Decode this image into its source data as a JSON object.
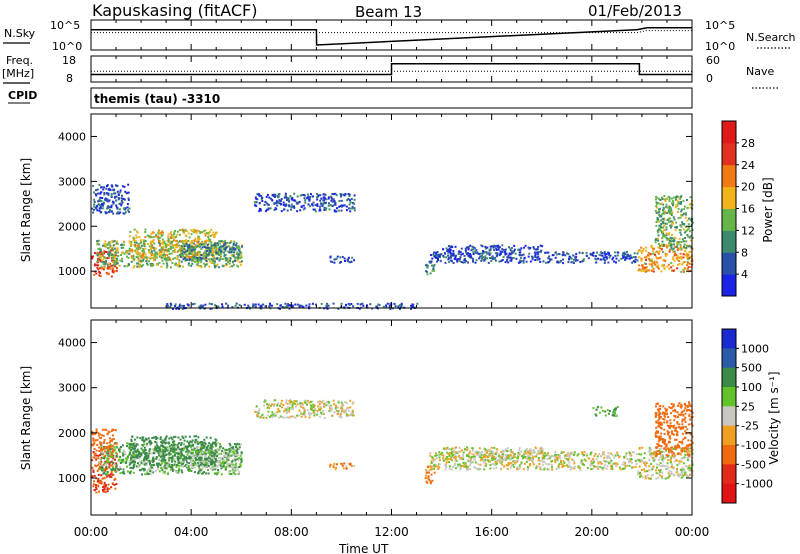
{
  "header": {
    "station": "Kapuskasing (fitACF)",
    "beam": "Beam 13",
    "date": "01/Feb/2013"
  },
  "noise_panel": {
    "left_label": "N.Sky",
    "left_ticks": [
      "10^5",
      "10^0"
    ],
    "right_label": "N.Search",
    "right_ticks": [
      "10^5",
      "10^0"
    ]
  },
  "freq_panel": {
    "left_label_1": "Freq.",
    "left_label_2": "[MHz]",
    "left_ticks": [
      "18",
      "8"
    ],
    "right_label": "Nave",
    "right_ticks": [
      "60",
      "0"
    ]
  },
  "cpid": {
    "label": "CPID",
    "program": "themis (tau) -3310"
  },
  "time_axis": {
    "label": "Time UT",
    "ticks": [
      "00:00",
      "04:00",
      "08:00",
      "12:00",
      "16:00",
      "20:00",
      "00:00"
    ]
  },
  "power_panel": {
    "ylabel": "Slant Range [km]",
    "yticks": [
      "1000",
      "2000",
      "3000",
      "4000"
    ],
    "colorbar_title": "Power [dB]",
    "colorbar_ticks": [
      "4",
      "8",
      "12",
      "16",
      "20",
      "24",
      "28"
    ]
  },
  "velocity_panel": {
    "ylabel": "Slant Range [km]",
    "yticks": [
      "1000",
      "2000",
      "3000",
      "4000"
    ],
    "colorbar_title": "Velocity [m s⁻¹]",
    "colorbar_ticks": [
      "1000",
      "500",
      "100",
      "25",
      "-25",
      "-100",
      "-500",
      "-1000"
    ]
  },
  "colors": {
    "power_scale": [
      "#1a23e6",
      "#2a50a8",
      "#3c8a6e",
      "#66b54a",
      "#f0b41a",
      "#f07a14",
      "#e0321e",
      "#e01a1a"
    ],
    "velocity_scale": [
      "#1a2ad0",
      "#2a5aa8",
      "#3a8a48",
      "#62c22a",
      "#c8c8c0",
      "#f0a020",
      "#f06a10",
      "#e02a1a",
      "#e01414"
    ],
    "ground_scatter": "#c8c8c0"
  },
  "chart_data": [
    {
      "type": "line",
      "name": "noise",
      "x_hours": [
        0,
        9.0,
        9.01,
        21.8,
        22.2,
        24
      ],
      "sky_log10": [
        3.4,
        3.4,
        0.2,
        3.4,
        3.8,
        3.8
      ],
      "search_log10": [
        2.8,
        2.8,
        2.8,
        2.8,
        3.2,
        3.2
      ],
      "ylim_log10": [
        0,
        5
      ]
    },
    {
      "type": "line",
      "name": "frequency",
      "x_hours": [
        0,
        12.0,
        12.0,
        21.9,
        21.9,
        24
      ],
      "freq_mhz": [
        10.5,
        10.5,
        15.4,
        15.4,
        10.5,
        10.5
      ],
      "nave": [
        24,
        24,
        24,
        24,
        24,
        24
      ],
      "ylim_freq": [
        8,
        18
      ],
      "ylim_nave": [
        0,
        60
      ]
    },
    {
      "type": "heatmap",
      "name": "power",
      "xlim_hours": [
        0,
        24
      ],
      "ylim_km": [
        180,
        4500
      ],
      "colorbar_range_db": [
        0,
        32
      ],
      "regions": [
        {
          "t": [
            0.0,
            1.0
          ],
          "r": [
            900,
            1500
          ],
          "v": 26
        },
        {
          "t": [
            0.2,
            6.0
          ],
          "r": [
            1100,
            1700
          ],
          "v": 14
        },
        {
          "t": [
            1.5,
            5.0
          ],
          "r": [
            1300,
            1950
          ],
          "v": 17
        },
        {
          "t": [
            3.5,
            6.0
          ],
          "r": [
            1250,
            1650
          ],
          "v": 9
        },
        {
          "t": [
            6.5,
            10.5
          ],
          "r": [
            2350,
            2750
          ],
          "v": 5
        },
        {
          "t": [
            9.5,
            10.5
          ],
          "r": [
            1200,
            1350
          ],
          "v": 5
        },
        {
          "t": [
            13.3,
            13.7
          ],
          "r": [
            950,
            1250
          ],
          "v": 11
        },
        {
          "t": [
            13.5,
            21.8
          ],
          "r": [
            1200,
            1450
          ],
          "v": 5
        },
        {
          "t": [
            14.0,
            18.0
          ],
          "r": [
            1400,
            1600
          ],
          "v": 5
        },
        {
          "t": [
            21.8,
            24.0
          ],
          "r": [
            1000,
            1600
          ],
          "v": 20
        },
        {
          "t": [
            22.5,
            24.0
          ],
          "r": [
            1500,
            2700
          ],
          "v": 13
        },
        {
          "t": [
            0.0,
            1.5
          ],
          "r": [
            2300,
            2950
          ],
          "v": 5
        },
        {
          "t": [
            3.0,
            13.0
          ],
          "r": [
            180,
            300
          ],
          "v": 5
        }
      ]
    },
    {
      "type": "heatmap",
      "name": "velocity",
      "xlim_hours": [
        0,
        24
      ],
      "ylim_km": [
        180,
        4500
      ],
      "colorbar_range_ms": [
        -1000,
        1000
      ],
      "regions": [
        {
          "t": [
            0.0,
            1.0
          ],
          "r": [
            700,
            1600
          ],
          "v": -300
        },
        {
          "t": [
            0.3,
            6.0
          ],
          "r": [
            1100,
            1800
          ],
          "v": 60
        },
        {
          "t": [
            1.5,
            5.0
          ],
          "r": [
            1300,
            1950
          ],
          "v": 150
        },
        {
          "t": [
            3.5,
            6.0
          ],
          "r": [
            1250,
            1650
          ],
          "v": 40
        },
        {
          "t": [
            0.0,
            1.0
          ],
          "r": [
            1600,
            2100
          ],
          "v": -150
        },
        {
          "t": [
            6.5,
            10.5
          ],
          "r": [
            2350,
            2750
          ],
          "v": 0
        },
        {
          "t": [
            9.5,
            10.5
          ],
          "r": [
            1200,
            1350
          ],
          "v": -60
        },
        {
          "t": [
            13.3,
            13.7
          ],
          "r": [
            900,
            1300
          ],
          "v": -60
        },
        {
          "t": [
            13.5,
            21.8
          ],
          "r": [
            1200,
            1600
          ],
          "v": 0
        },
        {
          "t": [
            14.0,
            18.0
          ],
          "r": [
            1400,
            1700
          ],
          "v": 0
        },
        {
          "t": [
            21.8,
            24.0
          ],
          "r": [
            1000,
            1700
          ],
          "v": 0
        },
        {
          "t": [
            22.5,
            24.0
          ],
          "r": [
            1500,
            2700
          ],
          "v": -150
        },
        {
          "t": [
            20.0,
            21.0
          ],
          "r": [
            2400,
            2600
          ],
          "v": 80
        }
      ]
    }
  ]
}
